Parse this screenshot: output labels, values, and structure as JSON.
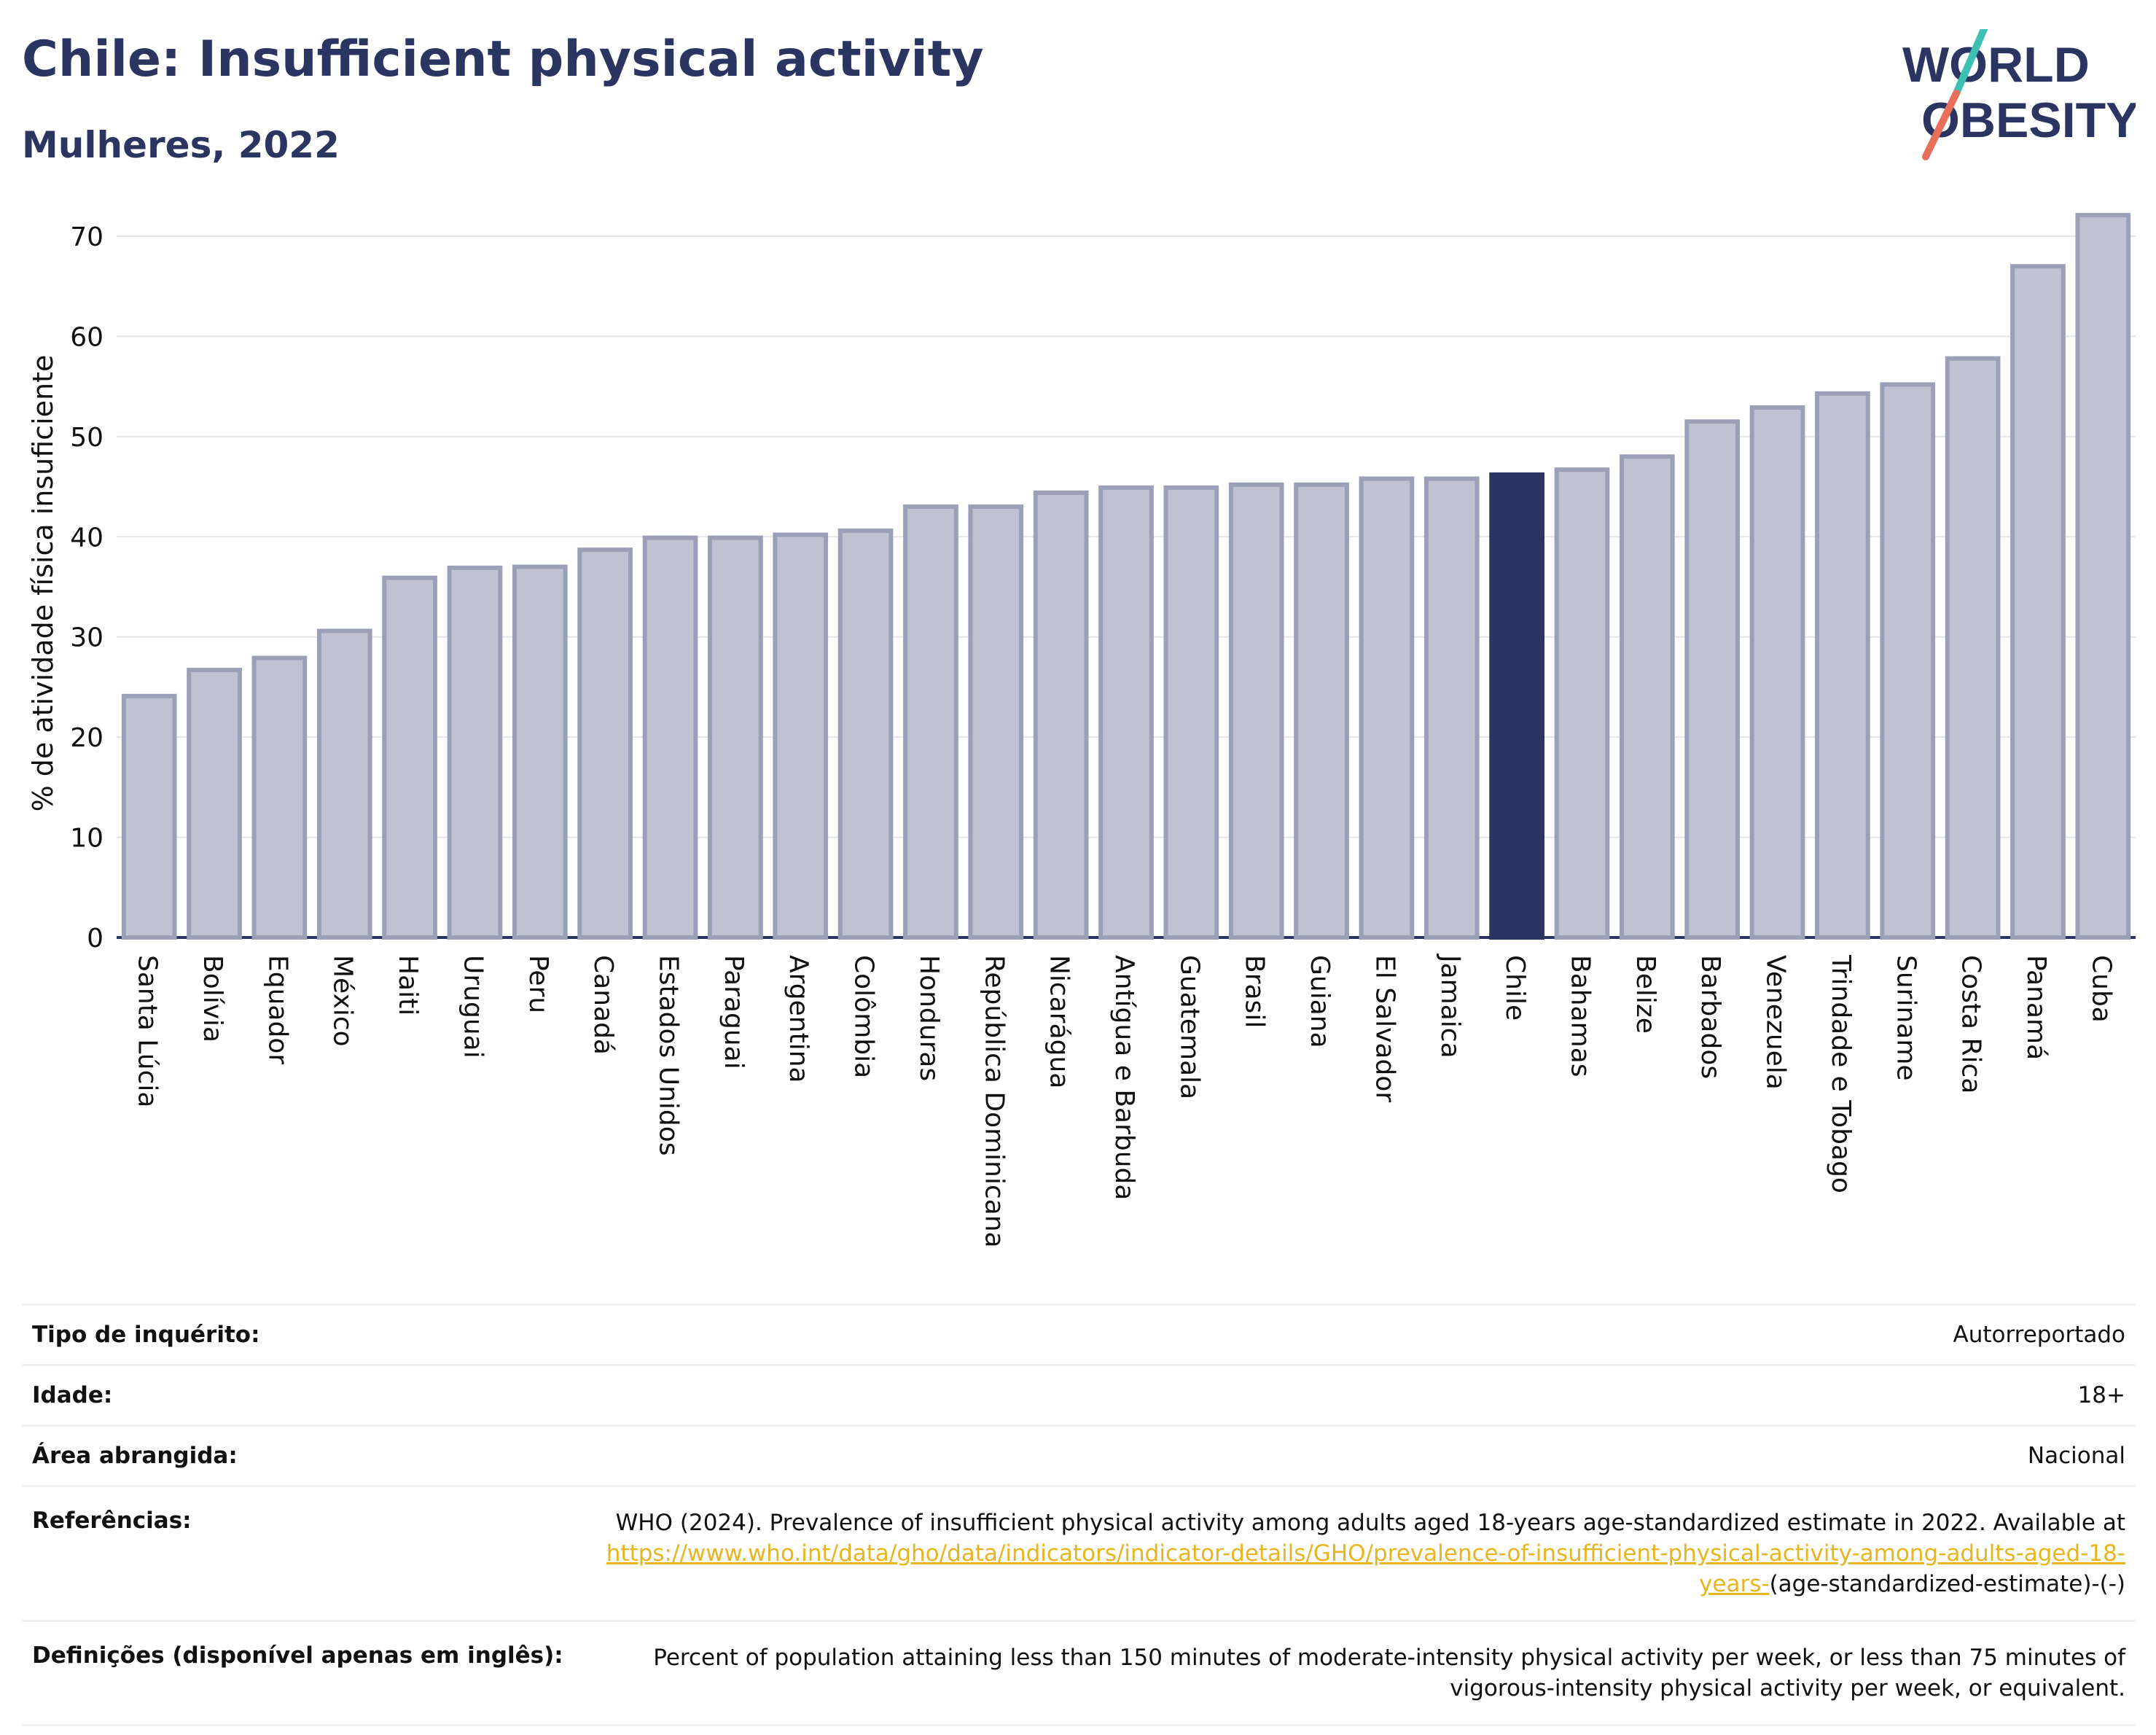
{
  "header": {
    "title": "Chile: Insufficient physical activity",
    "subtitle": "Mulheres, 2022",
    "logo_line1": "WORLD",
    "logo_line2": "OBESITY"
  },
  "colors": {
    "bar": "#bfc2d0",
    "bar_border": "#9aa0b8",
    "highlight": "#2b3561",
    "title": "#2b3561",
    "logo_teal": "#3ebfb4",
    "logo_red": "#e8705a",
    "link": "#e7b520"
  },
  "chart_data": {
    "type": "bar",
    "ylabel": "% de atividade física insuficiente",
    "ylim": [
      0,
      72
    ],
    "yticks": [
      0,
      10,
      20,
      30,
      40,
      50,
      60,
      70
    ],
    "grid": true,
    "highlight": "Chile",
    "categories": [
      "Santa Lúcia",
      "Bolívia",
      "Equador",
      "México",
      "Haiti",
      "Uruguai",
      "Peru",
      "Canadá",
      "Estados Unidos",
      "Paraguai",
      "Argentina",
      "Colômbia",
      "Honduras",
      "República Dominicana",
      "Nicarágua",
      "Antígua e Barbuda",
      "Guatemala",
      "Brasil",
      "Guiana",
      "El Salvador",
      "Jamaica",
      "Chile",
      "Bahamas",
      "Belize",
      "Barbados",
      "Venezuela",
      "Trindade e Tobago",
      "Suriname",
      "Costa Rica",
      "Panamá",
      "Cuba"
    ],
    "values": [
      24.1,
      26.7,
      27.9,
      30.6,
      35.9,
      36.9,
      37.0,
      38.7,
      39.9,
      39.9,
      40.2,
      40.6,
      43.0,
      43.0,
      44.4,
      44.9,
      44.9,
      45.2,
      45.2,
      45.8,
      45.8,
      46.2,
      46.7,
      48.0,
      51.5,
      52.9,
      54.3,
      55.2,
      57.8,
      67.0,
      72.1
    ]
  },
  "info": {
    "survey_label": "Tipo de inquérito:",
    "survey_value": "Autorreportado",
    "age_label": "Idade:",
    "age_value": "18+",
    "area_label": "Área abrangida:",
    "area_value": "Nacional",
    "refs_label": "Referências:",
    "refs_text": "WHO (2024). Prevalence of insufficient physical activity among adults aged 18-years age-standardized estimate in 2022. Available at ",
    "refs_link": "https://www.who.int/data/gho/data/indicators/indicator-details/GHO/prevalence-of-insufficient-physical-activity-among-adults-aged-18-years-",
    "refs_suffix": "(age-standardized-estimate)-(-)",
    "defs_label": "Definições (disponível apenas em inglês):",
    "defs_value": "Percent of population attaining less than 150 minutes of moderate-intensity physical activity per week, or less than 75 minutes of vigorous-intensity physical activity per week, or equivalent."
  }
}
